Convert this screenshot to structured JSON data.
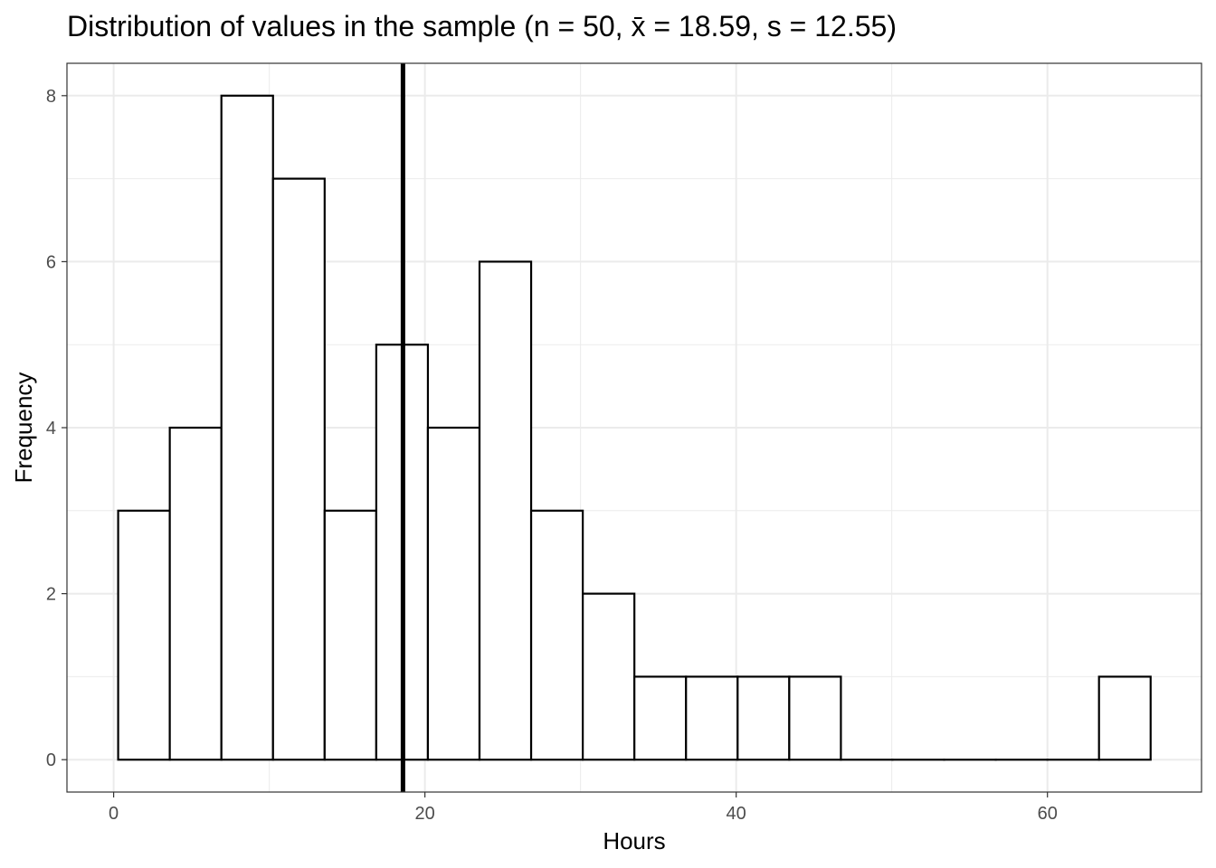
{
  "chart_data": {
    "type": "bar",
    "subtype": "histogram",
    "title": "Distribution of values in the sample (n =  50, x̄ =  18.59, s = 12.55)",
    "xlabel": "Hours",
    "ylabel": "Frequency",
    "xlim": [
      -3.0,
      69.9
    ],
    "ylim": [
      -0.39,
      8.39
    ],
    "x_ticks": [
      0,
      20,
      40,
      60
    ],
    "x_tick_labels": [
      "0",
      "20",
      "40",
      "60"
    ],
    "y_ticks": [
      0,
      2,
      4,
      6,
      8
    ],
    "y_tick_labels": [
      "0",
      "2",
      "4",
      "6",
      "8"
    ],
    "grid": true,
    "bin_start": 0.29,
    "bin_width": 3.317,
    "counts": [
      3,
      4,
      8,
      7,
      3,
      5,
      4,
      6,
      3,
      2,
      1,
      1,
      1,
      1,
      0,
      0,
      0,
      0,
      0,
      1
    ],
    "mean_line": 18.59,
    "n": 50,
    "sd": 12.55,
    "colors": {
      "bar_fill": "#ffffff",
      "bar_stroke": "#000000",
      "grid": "#ebebeb",
      "mean_line": "#000000"
    }
  }
}
